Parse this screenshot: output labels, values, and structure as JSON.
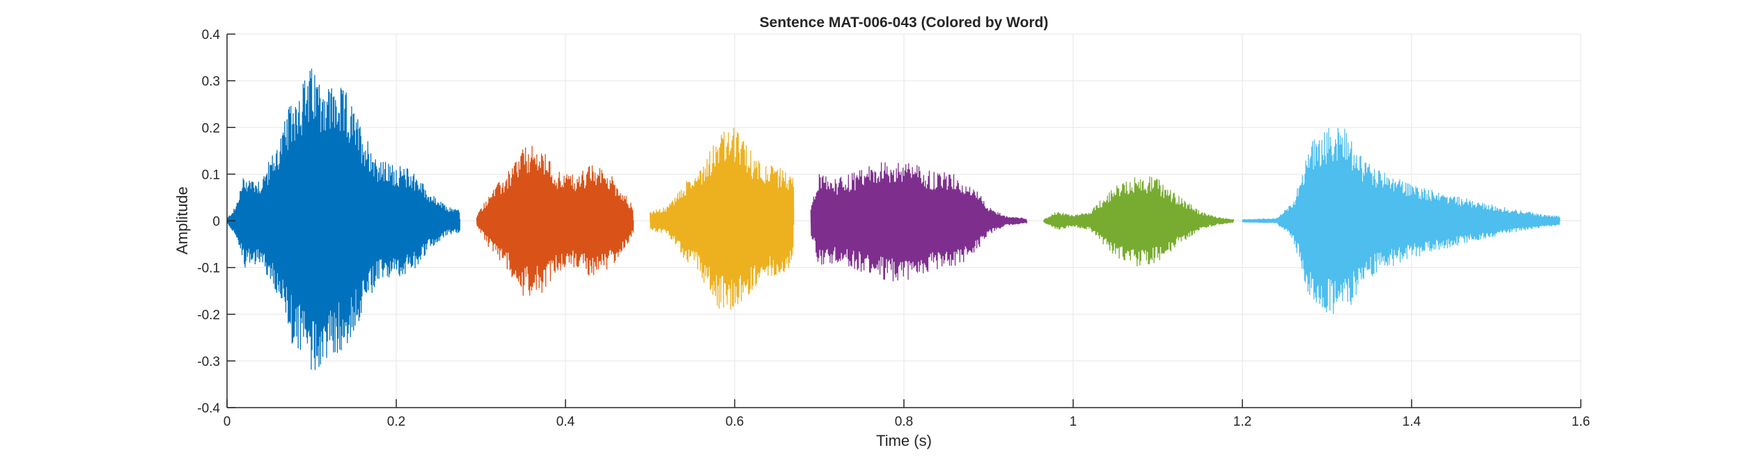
{
  "chart_data": {
    "type": "line",
    "title": "Sentence MAT-006-043 (Colored by Word)",
    "xlabel": "Time (s)",
    "ylabel": "Amplitude",
    "xlim": [
      0,
      1.6
    ],
    "ylim": [
      -0.4,
      0.4
    ],
    "xticks": [
      0,
      0.2,
      0.4,
      0.6,
      0.8,
      1,
      1.2,
      1.4,
      1.6
    ],
    "xtick_labels": [
      "0",
      "0.2",
      "0.4",
      "0.6",
      "0.8",
      "1",
      "1.2",
      "1.4",
      "1.6"
    ],
    "yticks": [
      -0.4,
      -0.3,
      -0.2,
      -0.1,
      0,
      0.1,
      0.2,
      0.3,
      0.4
    ],
    "ytick_labels": [
      "-0.4",
      "-0.3",
      "-0.2",
      "-0.1",
      "0",
      "0.1",
      "0.2",
      "0.3",
      "0.4"
    ],
    "grid": true,
    "series": [
      {
        "color": "#0072BD",
        "cycles_per_second": 1100,
        "envelope": [
          [
            0.0,
            0.005
          ],
          [
            0.01,
            0.03
          ],
          [
            0.02,
            0.1
          ],
          [
            0.04,
            0.09
          ],
          [
            0.06,
            0.17
          ],
          [
            0.08,
            0.28
          ],
          [
            0.1,
            0.33
          ],
          [
            0.12,
            0.3
          ],
          [
            0.14,
            0.28
          ],
          [
            0.16,
            0.2
          ],
          [
            0.18,
            0.13
          ],
          [
            0.2,
            0.12
          ],
          [
            0.22,
            0.11
          ],
          [
            0.24,
            0.06
          ],
          [
            0.26,
            0.03
          ],
          [
            0.275,
            0.025
          ]
        ]
      },
      {
        "color": "#D95319",
        "cycles_per_second": 900,
        "envelope": [
          [
            0.295,
            0.01
          ],
          [
            0.31,
            0.06
          ],
          [
            0.33,
            0.1
          ],
          [
            0.35,
            0.16
          ],
          [
            0.37,
            0.16
          ],
          [
            0.39,
            0.11
          ],
          [
            0.41,
            0.1
          ],
          [
            0.43,
            0.12
          ],
          [
            0.45,
            0.11
          ],
          [
            0.47,
            0.06
          ],
          [
            0.48,
            0.03
          ]
        ]
      },
      {
        "color": "#EDB120",
        "cycles_per_second": 950,
        "envelope": [
          [
            0.5,
            0.02
          ],
          [
            0.52,
            0.03
          ],
          [
            0.54,
            0.08
          ],
          [
            0.56,
            0.12
          ],
          [
            0.58,
            0.19
          ],
          [
            0.6,
            0.2
          ],
          [
            0.62,
            0.15
          ],
          [
            0.64,
            0.12
          ],
          [
            0.66,
            0.11
          ],
          [
            0.67,
            0.09
          ]
        ]
      },
      {
        "color": "#7E2F8E",
        "cycles_per_second": 900,
        "envelope": [
          [
            0.69,
            0.03
          ],
          [
            0.7,
            0.1
          ],
          [
            0.72,
            0.09
          ],
          [
            0.75,
            0.11
          ],
          [
            0.78,
            0.13
          ],
          [
            0.8,
            0.13
          ],
          [
            0.83,
            0.11
          ],
          [
            0.86,
            0.1
          ],
          [
            0.88,
            0.08
          ],
          [
            0.9,
            0.03
          ],
          [
            0.92,
            0.01
          ],
          [
            0.945,
            0.005
          ]
        ]
      },
      {
        "color": "#77AC30",
        "cycles_per_second": 900,
        "envelope": [
          [
            0.965,
            0.002
          ],
          [
            0.98,
            0.02
          ],
          [
            1.0,
            0.012
          ],
          [
            1.02,
            0.02
          ],
          [
            1.04,
            0.06
          ],
          [
            1.06,
            0.09
          ],
          [
            1.08,
            0.1
          ],
          [
            1.1,
            0.09
          ],
          [
            1.12,
            0.06
          ],
          [
            1.15,
            0.02
          ],
          [
            1.17,
            0.008
          ],
          [
            1.19,
            0.003
          ]
        ]
      },
      {
        "color": "#4DBEEE",
        "cycles_per_second": 1000,
        "envelope": [
          [
            1.2,
            0.003
          ],
          [
            1.24,
            0.005
          ],
          [
            1.26,
            0.04
          ],
          [
            1.28,
            0.17
          ],
          [
            1.3,
            0.2
          ],
          [
            1.32,
            0.21
          ],
          [
            1.34,
            0.14
          ],
          [
            1.36,
            0.11
          ],
          [
            1.4,
            0.08
          ],
          [
            1.44,
            0.06
          ],
          [
            1.48,
            0.04
          ],
          [
            1.52,
            0.025
          ],
          [
            1.56,
            0.012
          ],
          [
            1.575,
            0.01
          ]
        ]
      }
    ]
  }
}
